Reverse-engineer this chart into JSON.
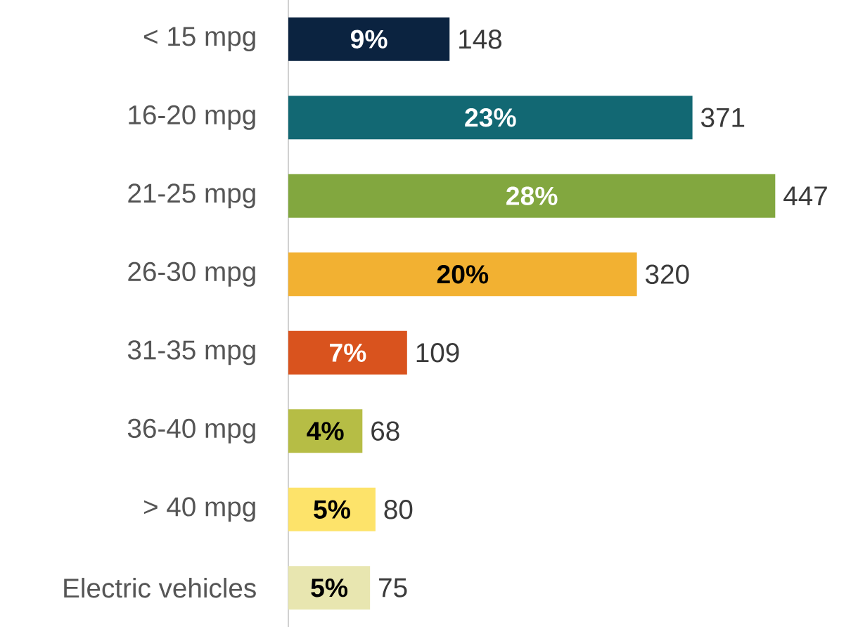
{
  "chart_data": {
    "type": "bar",
    "orientation": "horizontal",
    "categories": [
      "< 15 mpg",
      "16-20 mpg",
      "21-25 mpg",
      "26-30 mpg",
      "31-35 mpg",
      "36-40 mpg",
      "> 40 mpg",
      "Electric vehicles"
    ],
    "values": [
      148,
      371,
      447,
      320,
      109,
      68,
      80,
      75
    ],
    "colors": [
      "#0b2340",
      "#126873",
      "#82a73f",
      "#f2b132",
      "#d9531e",
      "#b6bd45",
      "#fde36a",
      "#e8e6b0"
    ],
    "data_labels": true,
    "annotations": [
      "9%",
      "23%",
      "28%",
      "20%",
      "7%",
      "4%",
      "5%",
      "5%"
    ]
  }
}
